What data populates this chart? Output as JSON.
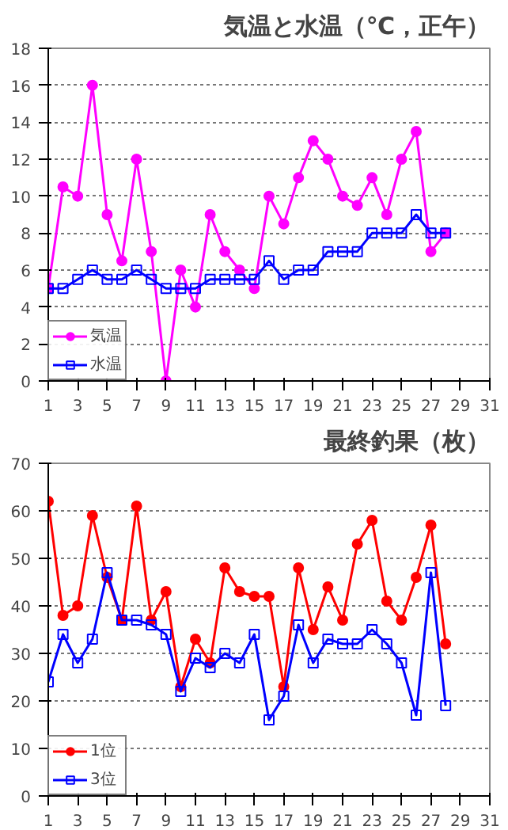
{
  "chart_data": [
    {
      "type": "line",
      "title": "気温と水温（℃，正午）",
      "x": [
        1,
        2,
        3,
        4,
        5,
        6,
        7,
        8,
        9,
        10,
        11,
        12,
        13,
        14,
        15,
        16,
        17,
        18,
        19,
        20,
        21,
        22,
        23,
        24,
        25,
        26,
        27,
        28
      ],
      "xlim": [
        1,
        31
      ],
      "xticks": [
        1,
        3,
        5,
        7,
        9,
        11,
        13,
        15,
        17,
        19,
        21,
        23,
        25,
        27,
        29,
        31
      ],
      "ylim": [
        0,
        18
      ],
      "yticks": [
        0,
        2,
        4,
        6,
        8,
        10,
        12,
        14,
        16,
        18
      ],
      "grid": "y",
      "legend": "bottom left",
      "series": [
        {
          "name": "気温",
          "color": "#ff00ff",
          "marker": "circle",
          "values": [
            5,
            10.5,
            10,
            16,
            9,
            6.5,
            12,
            7,
            0,
            6,
            4,
            9,
            7,
            6,
            5,
            10,
            8.5,
            11,
            13,
            12,
            10,
            9.5,
            11,
            9,
            12,
            13.5,
            7,
            8
          ]
        },
        {
          "name": "水温",
          "color": "#0000ff",
          "marker": "square",
          "values": [
            5,
            5,
            5.5,
            6,
            5.5,
            5.5,
            6,
            5.5,
            5,
            5,
            5,
            5.5,
            5.5,
            5.5,
            5.5,
            6.5,
            5.5,
            6,
            6,
            7,
            7,
            7,
            8,
            8,
            8,
            9,
            8,
            8
          ]
        }
      ]
    },
    {
      "type": "line",
      "title": "最終釣果（枚）",
      "x": [
        1,
        2,
        3,
        4,
        5,
        6,
        7,
        8,
        9,
        10,
        11,
        12,
        13,
        14,
        15,
        16,
        17,
        18,
        19,
        20,
        21,
        22,
        23,
        24,
        25,
        26,
        27,
        28
      ],
      "xlim": [
        1,
        31
      ],
      "xticks": [
        1,
        3,
        5,
        7,
        9,
        11,
        13,
        15,
        17,
        19,
        21,
        23,
        25,
        27,
        29,
        31
      ],
      "ylim": [
        0,
        70
      ],
      "yticks": [
        0,
        10,
        20,
        30,
        40,
        50,
        60,
        70
      ],
      "grid": "y",
      "legend": "bottom left",
      "series": [
        {
          "name": "1位",
          "color": "#ff0000",
          "marker": "circle",
          "values": [
            62,
            38,
            40,
            59,
            46,
            37,
            61,
            37,
            43,
            23,
            33,
            28,
            48,
            43,
            42,
            42,
            23,
            48,
            35,
            44,
            37,
            53,
            58,
            41,
            37,
            46,
            57,
            32
          ]
        },
        {
          "name": "3位",
          "color": "#0000ff",
          "marker": "square",
          "values": [
            24,
            34,
            28,
            33,
            47,
            37,
            37,
            36,
            34,
            22,
            29,
            27,
            30,
            28,
            34,
            16,
            21,
            36,
            28,
            33,
            32,
            32,
            35,
            32,
            28,
            17,
            47,
            19
          ]
        }
      ]
    }
  ]
}
